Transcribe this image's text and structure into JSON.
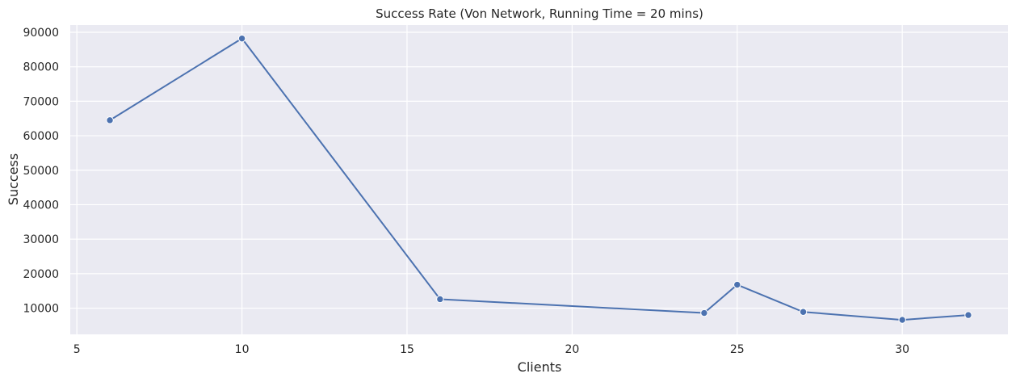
{
  "chart_data": {
    "type": "line",
    "title": "Success Rate (Von Network, Running Time = 20 mins)",
    "xlabel": "Clients",
    "ylabel": "Success",
    "x": [
      6,
      10,
      16,
      24,
      25,
      27,
      30,
      32
    ],
    "series": [
      {
        "values": [
          64500,
          88200,
          12600,
          8600,
          16800,
          8900,
          6600,
          8000
        ]
      }
    ],
    "xlim": [
      4.8,
      33.2
    ],
    "ylim": [
      2400,
      92100
    ],
    "xticks": [
      5,
      10,
      15,
      20,
      25,
      30
    ],
    "yticks": [
      10000,
      20000,
      30000,
      40000,
      50000,
      60000,
      70000,
      80000,
      90000
    ],
    "xtick_labels": [
      "5",
      "10",
      "15",
      "20",
      "25",
      "30"
    ],
    "ytick_labels": [
      "10000",
      "20000",
      "30000",
      "40000",
      "50000",
      "60000",
      "70000",
      "80000",
      "90000"
    ],
    "grid": true,
    "background_color": "#eaeaf2",
    "grid_color": "#ffffff",
    "line_color": "#4c72b0"
  }
}
